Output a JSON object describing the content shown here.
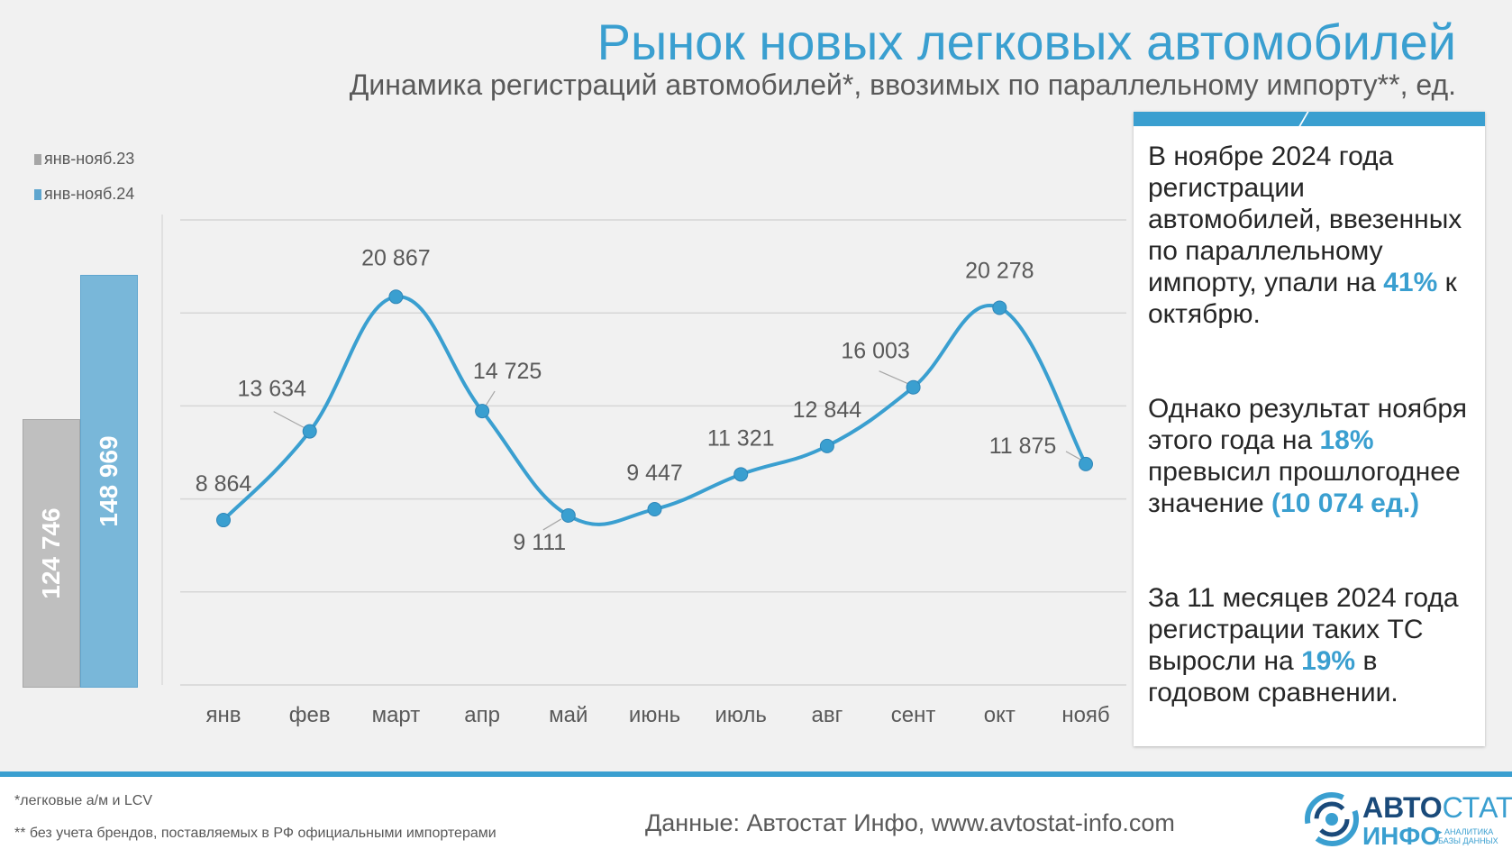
{
  "title": "Рынок новых легковых автомобилей",
  "subtitle": "Динамика регистраций автомобилей*, ввозимых по параллельному импорту**, ед.",
  "colors": {
    "accent": "#3a9fd0",
    "bar_gray": "#bfbfbf",
    "bar_blue": "#79b7d9"
  },
  "summary_bars": {
    "legend": [
      {
        "label": "янв-нояб.23",
        "color": "#a6a6a6"
      },
      {
        "label": "янв-нояб.24",
        "color": "#5fa6cf"
      }
    ],
    "values": [
      {
        "label": "124 746",
        "value": 124746
      },
      {
        "label": "148 969",
        "value": 148969
      }
    ]
  },
  "chart_data": {
    "type": "line",
    "categories": [
      "янв",
      "фев",
      "март",
      "апр",
      "май",
      "июнь",
      "июль",
      "авг",
      "сент",
      "окт",
      "нояб"
    ],
    "values": [
      8864,
      13634,
      20867,
      14725,
      9111,
      9447,
      11321,
      12844,
      16003,
      20278,
      11875
    ],
    "value_labels": [
      "8 864",
      "13 634",
      "20 867",
      "14 725",
      "9 111",
      "9 447",
      "11 321",
      "12 844",
      "16 003",
      "20 278",
      "11 875"
    ],
    "ylim": [
      0,
      25000
    ],
    "grid": true,
    "smooth": true,
    "color": "#3a9fd0"
  },
  "info": {
    "p1_text": "В ноябре 2024 года регистрации автомобилей, ввезенных по параллельному импорту, упали на",
    "p1_hl": "41%",
    "p1_end": "к октябрю.",
    "p2_text": "Однако результат ноября этого года на",
    "p2_hl": "18%",
    "p2_mid": "превысил прошлогоднее значение",
    "p2_hl2": "(10 074 ед.)",
    "p3_text": "За 11 месяцев 2024 года регистрации таких ТС выросли на",
    "p3_hl": "19%",
    "p3_end": "в годовом сравнении."
  },
  "footer": {
    "note1": "*легковые а/м и LCV",
    "note2": "** без учета брендов, поставляемых в РФ официальными импортерами",
    "source": "Данные: Автостат Инфо, www.avtostat-info.com"
  },
  "logo": {
    "top_a": "АВТО",
    "top_b": "СТАТ",
    "bottom": "ИНФО",
    "sub": "▸ АНАЛИТИКА БАЗЫ ДАННЫХ"
  }
}
